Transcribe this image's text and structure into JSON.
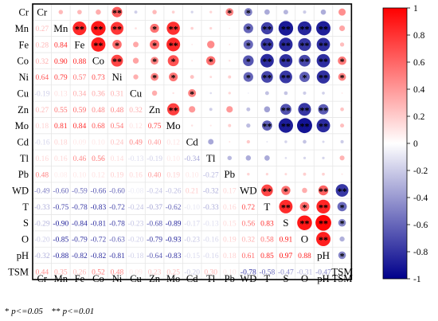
{
  "chart_data": {
    "type": "heatmap",
    "variables": [
      "Cr",
      "Mn",
      "Fe",
      "Co",
      "Ni",
      "Cu",
      "Zn",
      "Mo",
      "Cd",
      "Tl",
      "Pb",
      "WD",
      "T",
      "S",
      "O",
      "pH",
      "TSM"
    ],
    "matrix": [
      [
        1,
        0.27,
        0.28,
        0.32,
        0.64,
        -0.19,
        0.27,
        0.18,
        -0.16,
        0.16,
        0.48,
        -0.49,
        -0.33,
        -0.29,
        -0.2,
        -0.32,
        0.44
      ],
      [
        0.27,
        1,
        0.84,
        0.9,
        0.79,
        0.13,
        0.55,
        0.81,
        0.18,
        0.16,
        0.08,
        -0.6,
        -0.75,
        -0.9,
        -0.85,
        -0.88,
        0.35
      ],
      [
        0.28,
        0.84,
        1,
        0.88,
        0.57,
        0.34,
        0.59,
        0.84,
        0.09,
        0.46,
        0.1,
        -0.59,
        -0.78,
        -0.84,
        -0.79,
        -0.82,
        0.26
      ],
      [
        0.32,
        0.9,
        0.88,
        1,
        0.73,
        0.36,
        0.48,
        0.68,
        0.1,
        0.56,
        0.12,
        -0.66,
        -0.83,
        -0.81,
        -0.72,
        -0.82,
        0.52
      ],
      [
        0.64,
        0.79,
        0.57,
        0.73,
        1,
        0.31,
        0.48,
        0.54,
        0.24,
        0.14,
        0.19,
        -0.6,
        -0.72,
        -0.78,
        -0.63,
        -0.81,
        0.48
      ],
      [
        -0.19,
        0.13,
        0.34,
        0.36,
        0.31,
        1,
        0.32,
        0.12,
        0.49,
        -0.13,
        0.16,
        -0.08,
        -0.24,
        -0.23,
        -0.2,
        -0.18,
        0.09
      ],
      [
        0.27,
        0.55,
        0.59,
        0.48,
        0.48,
        0.32,
        1,
        0.75,
        0.4,
        -0.19,
        0.4,
        -0.24,
        -0.37,
        -0.68,
        -0.79,
        -0.64,
        0.23
      ],
      [
        0.18,
        0.81,
        0.84,
        0.68,
        0.54,
        0.12,
        0.75,
        1,
        0.12,
        0.1,
        0.19,
        -0.26,
        -0.62,
        -0.89,
        -0.93,
        -0.83,
        0.25
      ],
      [
        -0.16,
        0.18,
        0.09,
        0.1,
        0.24,
        0.49,
        0.4,
        0.12,
        1,
        -0.34,
        0.1,
        0.21,
        -0.1,
        -0.17,
        -0.23,
        -0.15,
        -0.2
      ],
      [
        0.16,
        0.16,
        0.46,
        0.56,
        0.14,
        -0.13,
        -0.19,
        0.1,
        -0.34,
        1,
        -0.27,
        -0.32,
        -0.33,
        -0.13,
        -0.16,
        -0.16,
        0.3
      ],
      [
        0.48,
        0.08,
        0.1,
        0.12,
        0.19,
        0.16,
        0.4,
        0.19,
        0.1,
        -0.27,
        1,
        0.17,
        0.16,
        0.15,
        0.19,
        0.18,
        0.1
      ],
      [
        -0.49,
        -0.6,
        -0.59,
        -0.66,
        -0.6,
        -0.08,
        -0.24,
        -0.26,
        0.21,
        -0.32,
        0.17,
        1,
        0.72,
        0.56,
        0.32,
        0.61,
        -0.78
      ],
      [
        -0.33,
        -0.75,
        -0.78,
        -0.83,
        -0.72,
        -0.24,
        -0.37,
        -0.62,
        -0.1,
        -0.33,
        0.16,
        0.72,
        1,
        0.83,
        0.58,
        0.85,
        -0.58
      ],
      [
        -0.29,
        -0.9,
        -0.84,
        -0.81,
        -0.78,
        -0.23,
        -0.68,
        -0.89,
        -0.17,
        -0.13,
        0.15,
        0.56,
        0.83,
        1,
        0.91,
        0.97,
        -0.47
      ],
      [
        -0.2,
        -0.85,
        -0.79,
        -0.72,
        -0.63,
        -0.2,
        -0.79,
        -0.93,
        -0.23,
        -0.16,
        0.19,
        0.32,
        0.58,
        0.91,
        1,
        0.88,
        -0.31
      ],
      [
        -0.32,
        -0.88,
        -0.82,
        -0.82,
        -0.81,
        -0.18,
        -0.64,
        -0.83,
        -0.15,
        -0.16,
        0.18,
        0.61,
        0.85,
        0.97,
        0.88,
        1,
        -0.47
      ],
      [
        0.44,
        0.35,
        0.26,
        0.52,
        0.48,
        0.09,
        0.23,
        0.25,
        -0.2,
        0.3,
        0.1,
        -0.78,
        -0.58,
        -0.47,
        -0.31,
        -0.47,
        1
      ]
    ],
    "significance": [
      [
        "",
        "",
        "",
        "",
        "**",
        "",
        "",
        "",
        "",
        "",
        "*",
        "*",
        "",
        "",
        "",
        "",
        ""
      ],
      [
        "",
        "",
        "**",
        "**",
        "**",
        "",
        "*",
        "**",
        "",
        "",
        "",
        "*",
        "**",
        "**",
        "**",
        "**",
        ""
      ],
      [
        "",
        "**",
        "",
        "**",
        "*",
        "",
        "*",
        "**",
        "",
        "",
        "",
        "*",
        "**",
        "**",
        "**",
        "**",
        ""
      ],
      [
        "",
        "**",
        "**",
        "",
        "**",
        "",
        "*",
        "*",
        "",
        "*",
        "",
        "*",
        "**",
        "**",
        "**",
        "**",
        "*"
      ],
      [
        "**",
        "**",
        "*",
        "**",
        "",
        "",
        "*",
        "*",
        "",
        "",
        "",
        "*",
        "**",
        "**",
        "*",
        "**",
        "*"
      ],
      [
        "",
        "",
        "",
        "",
        "",
        "",
        "",
        "",
        "*",
        "",
        "",
        "",
        "",
        "",
        "",
        "",
        ""
      ],
      [
        "",
        "*",
        "*",
        "*",
        "*",
        "",
        "",
        "**",
        "",
        "",
        "",
        "",
        "",
        "**",
        "**",
        "**",
        ""
      ],
      [
        "",
        "**",
        "**",
        "*",
        "*",
        "",
        "**",
        "",
        "",
        "",
        "",
        "",
        "**",
        "**",
        "**",
        "**",
        ""
      ],
      [
        "",
        "",
        "",
        "",
        "",
        "*",
        "",
        "",
        "",
        "",
        "",
        "",
        "",
        "",
        "",
        "",
        ""
      ],
      [
        "",
        "",
        "",
        "*",
        "",
        "",
        "",
        "",
        "",
        "",
        "",
        "",
        "",
        "",
        "",
        "",
        ""
      ],
      [
        "*",
        "",
        "",
        "",
        "",
        "",
        "",
        "",
        "",
        "",
        "",
        "",
        "",
        "",
        "",
        "",
        ""
      ],
      [
        "*",
        "*",
        "*",
        "*",
        "*",
        "",
        "",
        "",
        "",
        "",
        "",
        "",
        "**",
        "*",
        "",
        "**",
        "**"
      ],
      [
        "",
        "**",
        "**",
        "**",
        "**",
        "",
        "",
        "**",
        "",
        "",
        "",
        "**",
        "",
        "**",
        "*",
        "**",
        "*"
      ],
      [
        "",
        "**",
        "**",
        "**",
        "**",
        "",
        "**",
        "**",
        "",
        "",
        "",
        "*",
        "**",
        "",
        "**",
        "**",
        "*"
      ],
      [
        "",
        "**",
        "**",
        "**",
        "*",
        "",
        "**",
        "**",
        "",
        "",
        "",
        "",
        "*",
        "**",
        "",
        "**",
        ""
      ],
      [
        "",
        "**",
        "**",
        "**",
        "**",
        "",
        "**",
        "**",
        "",
        "",
        "",
        "**",
        "**",
        "**",
        "**",
        "",
        "*"
      ],
      [
        "",
        "",
        "",
        "*",
        "*",
        "",
        "",
        "",
        "",
        "",
        "",
        "**",
        "*",
        "*",
        "",
        "*",
        ""
      ]
    ],
    "colorbar": {
      "min": -1,
      "max": 1,
      "ticks": [
        "1",
        "0.8",
        "0.6",
        "0.4",
        "0.2",
        "0",
        "-0.2",
        "-0.4",
        "-0.6",
        "-0.8",
        "-1"
      ],
      "color_positive": "#ff0000",
      "color_zero": "#ffffff",
      "color_negative": "#00008b"
    },
    "upper_triangle": "circles",
    "lower_triangle": "numbers",
    "diagonal": "labels",
    "bottom_labels": true
  },
  "footnote": {
    "single_mark": "*",
    "single_text": "p<=0.05",
    "double_mark": "**",
    "double_text": "p<=0.01"
  }
}
